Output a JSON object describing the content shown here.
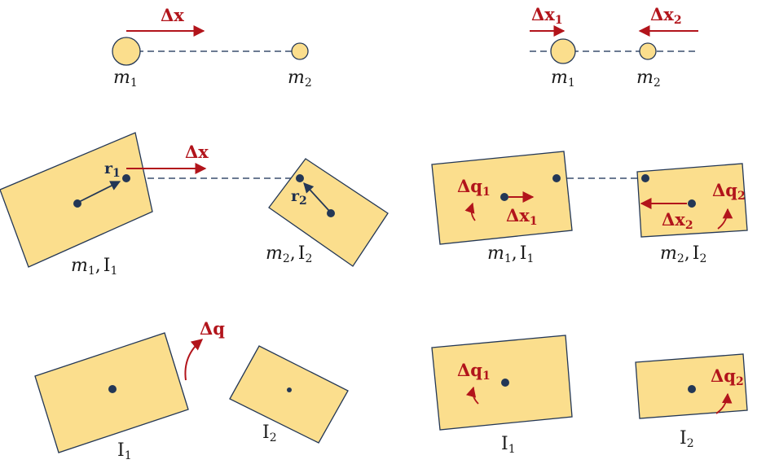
{
  "colors": {
    "body_fill": "#FBDE8D",
    "outline": "#233756",
    "accent_red": "#B2141B",
    "dash": "#3A4F6E"
  },
  "labels": {
    "delta": "Δ",
    "x": "x",
    "q": "q",
    "r": "r",
    "m": "m",
    "I": "I",
    "comma": ",",
    "sub1": "1",
    "sub2": "2"
  }
}
